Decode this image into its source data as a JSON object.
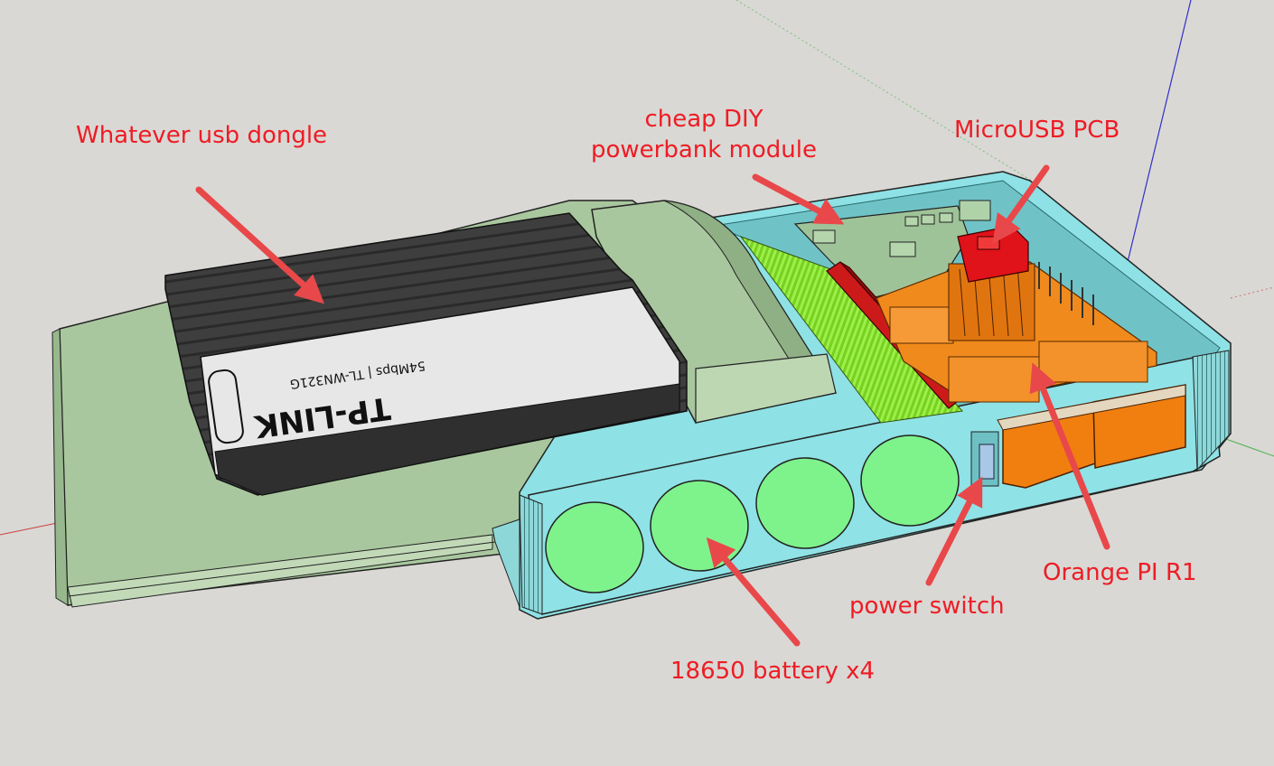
{
  "labels": {
    "dongle": "Whatever usb dongle",
    "powerbank_line1": "cheap DIY",
    "powerbank_line2": "powerbank module",
    "microusb": "MicroUSB PCB",
    "orangepi": "Orange PI R1",
    "power_switch": "power switch",
    "battery": "18650 battery x4"
  },
  "dongle_print": {
    "brand": "TP-LINK",
    "model": "54Mbps | TL-WN321G"
  },
  "colors": {
    "background": "#d9d8d4",
    "label_text": "#ee1c25",
    "arrow": "#e8484a",
    "case": "#8fe2e6",
    "tray": "#a9c79e",
    "battery": "#7ef38c",
    "board_orange": "#f08a1c",
    "microusb_red": "#e0121a",
    "powerbank_pcb": "#9fc398",
    "dongle_white": "#e7e7e7",
    "dongle_dark": "#3b3b3b"
  }
}
